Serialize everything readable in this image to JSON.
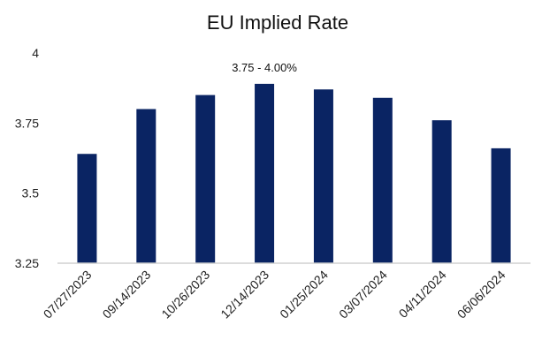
{
  "chart_data": {
    "type": "bar",
    "title": "EU Implied Rate",
    "categories": [
      "07/27/2023",
      "09/14/2023",
      "10/26/2023",
      "12/14/2023",
      "01/25/2024",
      "03/07/2024",
      "04/11/2024",
      "06/06/2024"
    ],
    "values": [
      3.64,
      3.8,
      3.85,
      3.89,
      3.87,
      3.84,
      3.76,
      3.66
    ],
    "ylim": [
      3.25,
      4.0
    ],
    "yticks": [
      "3.25",
      "3.5",
      "3.75",
      "4"
    ],
    "annotation": {
      "text": "3.75 - 4.00%",
      "category": "12/14/2023"
    },
    "colors": {
      "bar": "#0a2463",
      "axis": "#d0d0d0"
    },
    "grid": false,
    "legend": "none"
  }
}
